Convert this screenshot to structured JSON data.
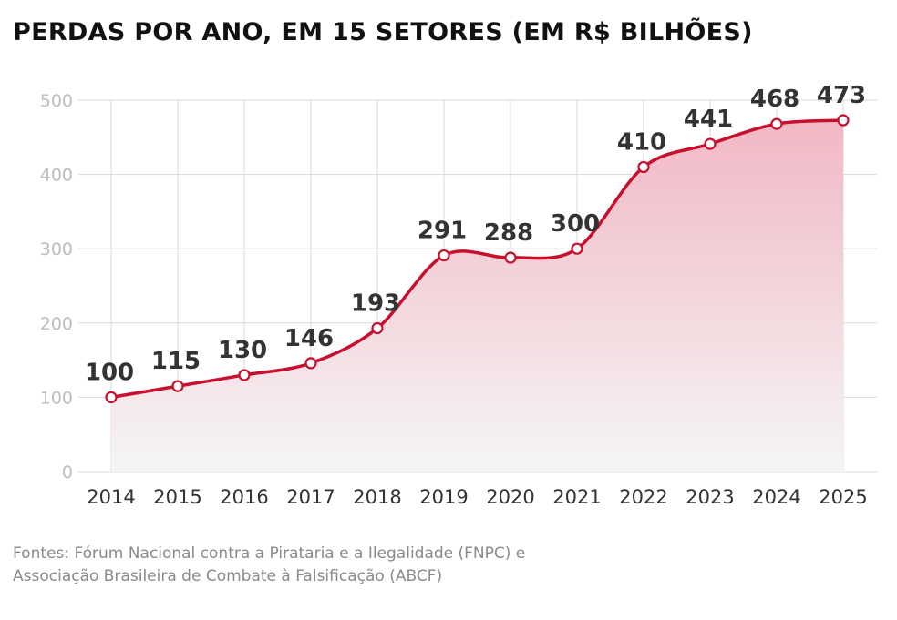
{
  "page": {
    "title": "PERDAS POR ANO, EM 15 SETORES (EM R$ BILHÕES)",
    "source_line1": "Fontes: Fórum Nacional contra a Pirataria e a Ilegalidade (FNPC) e",
    "source_line2": "Associação Brasileira de Combate à Falsificação (ABCF)"
  },
  "chart_data": {
    "type": "area",
    "title": "PERDAS POR ANO, EM 15 SETORES (EM R$ BILHÕES)",
    "xlabel": "",
    "ylabel": "",
    "categories": [
      "2014",
      "2015",
      "2016",
      "2017",
      "2018",
      "2019",
      "2020",
      "2021",
      "2022",
      "2023",
      "2024",
      "2025"
    ],
    "series": [
      {
        "values": [
          100,
          115,
          130,
          146,
          193,
          291,
          288,
          300,
          410,
          441,
          468,
          473
        ]
      }
    ],
    "data_labels": [
      "100",
      "115",
      "130",
      "146",
      "193",
      "291",
      "288",
      "300",
      "410",
      "441",
      "468",
      "473"
    ],
    "yticks": [
      0,
      100,
      200,
      300,
      400,
      500
    ],
    "ylim": [
      0,
      500
    ],
    "grid": true,
    "legend": "none",
    "colors": {
      "line": "#c8102e",
      "fill_top": "#f1b8c4",
      "fill_bottom": "#f5f5f5",
      "marker_fill": "#ffffff"
    }
  }
}
